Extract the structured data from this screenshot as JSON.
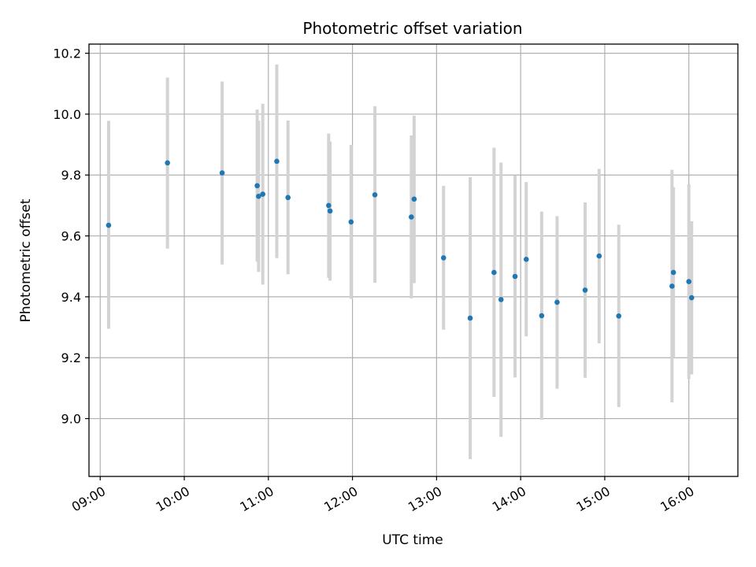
{
  "chart_data": {
    "type": "scatter",
    "title": "Photometric offset variation",
    "xlabel": "UTC time",
    "ylabel": "Photometric offset",
    "xlim": [
      "08:52",
      "16:35"
    ],
    "ylim": [
      8.81,
      10.23
    ],
    "grid": true,
    "x_ticks": [
      "09:00",
      "10:00",
      "11:00",
      "12:00",
      "13:00",
      "14:00",
      "15:00",
      "16:00"
    ],
    "y_ticks": [
      9.0,
      9.2,
      9.4,
      9.6,
      9.8,
      10.0,
      10.2
    ],
    "y_tick_labels": [
      "9.0",
      "9.2",
      "9.4",
      "9.6",
      "9.8",
      "10.0",
      "10.2"
    ],
    "point_color": "#1f77b4",
    "errorbar_color": "#d3d3d3",
    "points": [
      {
        "x": "09:06",
        "y": 9.635,
        "lo": 9.295,
        "hi": 9.978
      },
      {
        "x": "09:48",
        "y": 9.84,
        "lo": 9.558,
        "hi": 10.12
      },
      {
        "x": "10:27",
        "y": 9.807,
        "lo": 9.506,
        "hi": 10.107
      },
      {
        "x": "10:52",
        "y": 9.765,
        "lo": 9.515,
        "hi": 10.015
      },
      {
        "x": "10:53",
        "y": 9.73,
        "lo": 9.482,
        "hi": 9.978
      },
      {
        "x": "10:56",
        "y": 9.737,
        "lo": 9.44,
        "hi": 10.034
      },
      {
        "x": "11:06",
        "y": 9.845,
        "lo": 9.527,
        "hi": 10.163
      },
      {
        "x": "11:14",
        "y": 9.726,
        "lo": 9.474,
        "hi": 9.979
      },
      {
        "x": "11:43",
        "y": 9.7,
        "lo": 9.462,
        "hi": 9.936
      },
      {
        "x": "11:44",
        "y": 9.682,
        "lo": 9.453,
        "hi": 9.91
      },
      {
        "x": "11:59",
        "y": 9.646,
        "lo": 9.393,
        "hi": 9.899
      },
      {
        "x": "12:16",
        "y": 9.735,
        "lo": 9.446,
        "hi": 10.026
      },
      {
        "x": "12:42",
        "y": 9.662,
        "lo": 9.395,
        "hi": 9.93
      },
      {
        "x": "12:44",
        "y": 9.721,
        "lo": 9.445,
        "hi": 9.995
      },
      {
        "x": "13:05",
        "y": 9.528,
        "lo": 9.292,
        "hi": 9.764
      },
      {
        "x": "13:24",
        "y": 9.33,
        "lo": 8.867,
        "hi": 9.793
      },
      {
        "x": "13:41",
        "y": 9.48,
        "lo": 9.071,
        "hi": 9.89
      },
      {
        "x": "13:46",
        "y": 9.391,
        "lo": 8.94,
        "hi": 9.841
      },
      {
        "x": "13:56",
        "y": 9.467,
        "lo": 9.135,
        "hi": 9.798
      },
      {
        "x": "14:04",
        "y": 9.523,
        "lo": 9.27,
        "hi": 9.777
      },
      {
        "x": "14:15",
        "y": 9.338,
        "lo": 8.996,
        "hi": 9.68
      },
      {
        "x": "14:26",
        "y": 9.382,
        "lo": 9.098,
        "hi": 9.665
      },
      {
        "x": "14:46",
        "y": 9.422,
        "lo": 9.134,
        "hi": 9.71
      },
      {
        "x": "14:56",
        "y": 9.534,
        "lo": 9.247,
        "hi": 9.82
      },
      {
        "x": "15:10",
        "y": 9.337,
        "lo": 9.038,
        "hi": 9.637
      },
      {
        "x": "15:48",
        "y": 9.435,
        "lo": 9.053,
        "hi": 9.817
      },
      {
        "x": "15:49",
        "y": 9.48,
        "lo": 9.2,
        "hi": 9.76
      },
      {
        "x": "16:00",
        "y": 9.45,
        "lo": 9.13,
        "hi": 9.77
      },
      {
        "x": "16:02",
        "y": 9.397,
        "lo": 9.145,
        "hi": 9.648
      }
    ]
  }
}
